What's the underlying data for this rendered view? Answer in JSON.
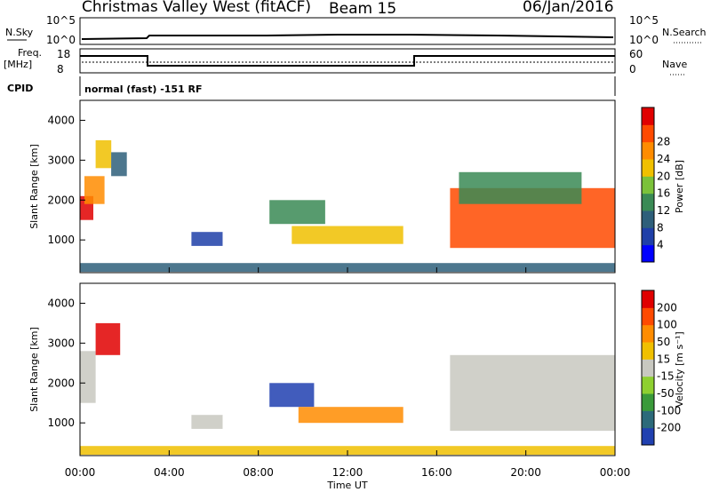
{
  "header": {
    "title": "Christmas Valley West (fitACF)",
    "beam": "Beam 15",
    "date": "06/Jan/2016"
  },
  "top_panels": {
    "nsky_label": "N.Sky",
    "nsearch_label": "N.Search",
    "noise_ticks_left": [
      "10^5",
      "10^0"
    ],
    "noise_ticks_right": [
      "10^5",
      "10^0"
    ],
    "freq_label_1": "Freq.",
    "freq_label_2": "[MHz]",
    "freq_ticks": [
      "18",
      "8"
    ],
    "nave_label": "Nave",
    "nave_ticks": [
      "60",
      "0"
    ],
    "cpid_label": "CPID",
    "cpid_text": "normal (fast) -151 RF"
  },
  "chart_data": [
    {
      "type": "heatmap",
      "name": "power",
      "ylabel": "Slant Range [km]",
      "ylim": [
        180,
        4500
      ],
      "yticks": [
        "1000",
        "2000",
        "3000",
        "4000"
      ],
      "colorbar": {
        "label": "Power [dB]",
        "ticks": [
          "4",
          "8",
          "12",
          "16",
          "20",
          "24",
          "28"
        ],
        "colors": [
          "#0000ff",
          "#1f3fa8",
          "#2e5f7a",
          "#3a8a55",
          "#7bc23a",
          "#f0c000",
          "#ff8c00",
          "#ff4a00",
          "#e00000"
        ]
      },
      "regions": [
        {
          "t0": 0.0,
          "t1": 0.6,
          "r0": 1500,
          "r1": 2100,
          "level": 8
        },
        {
          "t0": 0.2,
          "t1": 1.1,
          "r0": 1900,
          "r1": 2600,
          "level": 6
        },
        {
          "t0": 0.7,
          "t1": 1.4,
          "r0": 2800,
          "r1": 3500,
          "level": 5
        },
        {
          "t0": 1.4,
          "t1": 2.1,
          "r0": 2600,
          "r1": 3200,
          "level": 2
        },
        {
          "t0": 5.0,
          "t1": 6.4,
          "r0": 850,
          "r1": 1200,
          "level": 1
        },
        {
          "t0": 8.5,
          "t1": 11.0,
          "r0": 1400,
          "r1": 2000,
          "level": 3
        },
        {
          "t0": 9.5,
          "t1": 14.5,
          "r0": 900,
          "r1": 1350,
          "level": 5
        },
        {
          "t0": 16.6,
          "t1": 24.0,
          "r0": 800,
          "r1": 2300,
          "level": 7
        },
        {
          "t0": 17.0,
          "t1": 22.5,
          "r0": 1900,
          "r1": 2700,
          "level": 3
        },
        {
          "t0": 0.0,
          "t1": 24.0,
          "r0": 200,
          "r1": 420,
          "level": 2
        }
      ]
    },
    {
      "type": "heatmap",
      "name": "velocity",
      "ylabel": "Slant Range [km]",
      "ylim": [
        180,
        4500
      ],
      "yticks": [
        "1000",
        "2000",
        "3000",
        "4000"
      ],
      "colorbar": {
        "label": "Velocity [m s⁻¹]",
        "ticks": [
          "200",
          "100",
          "50",
          "15",
          "-15",
          "-50",
          "-100",
          "-200"
        ],
        "colors": [
          "#2040b0",
          "#2c6a7a",
          "#3a9a3a",
          "#8ed030",
          "#c8c8c0",
          "#f0c000",
          "#ff8c00",
          "#ff4a00",
          "#e00000"
        ]
      },
      "regions": [
        {
          "t0": 0.0,
          "t1": 0.7,
          "r0": 1500,
          "r1": 2800,
          "level": 4
        },
        {
          "t0": 0.7,
          "t1": 1.8,
          "r0": 2700,
          "r1": 3500,
          "level": 8
        },
        {
          "t0": 5.0,
          "t1": 6.4,
          "r0": 850,
          "r1": 1200,
          "level": 4
        },
        {
          "t0": 8.5,
          "t1": 10.5,
          "r0": 1400,
          "r1": 2000,
          "level": 0
        },
        {
          "t0": 9.8,
          "t1": 14.5,
          "r0": 1000,
          "r1": 1400,
          "level": 6
        },
        {
          "t0": 16.6,
          "t1": 24.0,
          "r0": 800,
          "r1": 2700,
          "level": 4
        },
        {
          "t0": 0.0,
          "t1": 24.0,
          "r0": 200,
          "r1": 420,
          "level": 5
        }
      ]
    }
  ],
  "xaxis": {
    "label": "Time UT",
    "ticks": [
      "00:00",
      "04:00",
      "08:00",
      "12:00",
      "16:00",
      "20:00",
      "00:00"
    ]
  }
}
